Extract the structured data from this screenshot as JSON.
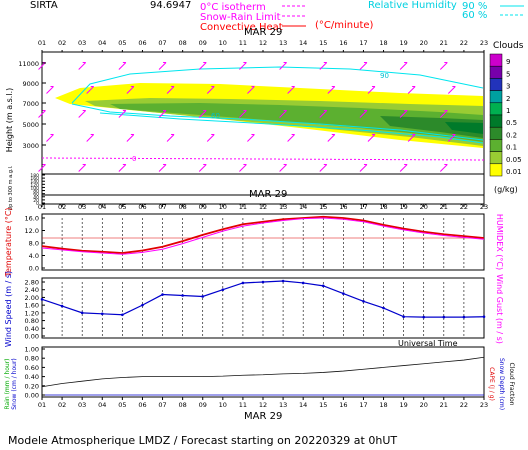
{
  "header": {
    "station": "SIRTA",
    "coords": "94.6947",
    "legend_isotherm": "0°C isotherm",
    "legend_snow": "Snow-Rain Limit",
    "legend_convective": "Convective Heat",
    "legend_convective_unit": "(°C/minute)",
    "legend_rh": "Relative Humidity",
    "rh_level_1": "90 %",
    "rh_level_2": "60 %"
  },
  "hours": [
    "01",
    "02",
    "03",
    "04",
    "05",
    "06",
    "07",
    "08",
    "09",
    "10",
    "11",
    "12",
    "13",
    "14",
    "15",
    "16",
    "17",
    "18",
    "19",
    "20",
    "21",
    "22",
    "23"
  ],
  "date_label": "MAR 29",
  "colors": {
    "isotherm": "#ff00ff",
    "rh": "#00e5ee",
    "temperature": "#e00000",
    "humidex": "#ff00ff",
    "wind": "#0000cc",
    "rain": "#111111"
  },
  "panel_cloud": {
    "ylabel": "Height (m a.s.l.)",
    "ylabel_low": "Up to 300 m a.g.l.",
    "high_ticks": [
      "11000",
      "9000",
      "7000",
      "5000",
      "3000"
    ],
    "low_ticks": [
      "180",
      "160",
      "140",
      "120",
      "100",
      "80",
      "60",
      "40",
      "20",
      "0"
    ],
    "legend_title": "Clouds",
    "legend_values": [
      "9",
      "5",
      "3",
      "2",
      "1",
      "0.5",
      "0.2",
      "0.1",
      "0.05",
      "0.01"
    ],
    "legend_colors": [
      "#cc00cc",
      "#7700aa",
      "#2233bb",
      "#00a0a0",
      "#00b050",
      "#007a2a",
      "#2c8a2a",
      "#5cb030",
      "#99cc33",
      "#ffff00"
    ],
    "legend_unit": "(g/kg)",
    "label_isotherm_value": "0",
    "label_rh_90": "90",
    "label_rh_60": "60"
  },
  "panel_temp": {
    "ylabel": "Temperature (°C)",
    "ylabel_right": "HUMIDEX (°C)",
    "ticks": [
      "16.0",
      "12.0",
      "8.0",
      "4.0",
      "0.0"
    ]
  },
  "panel_wind": {
    "ylabel": "Wind Speed (m / s)",
    "ylabel_right": "Wind Gust (m / s)",
    "ticks": [
      "2.80",
      "2.40",
      "2.00",
      "1.60",
      "1.20",
      "0.80",
      "0.40",
      "0.00"
    ]
  },
  "panel_rain": {
    "ylabel_rain": "Rain (mm / hour)",
    "ylabel_snow": "Snow (cm / hour)",
    "ylabel_cape": "CAPE (J / g)",
    "ylabel_snowdepth": "Snow Depth (cm)",
    "ylabel_cloudfrac": "Cloud Fraction",
    "ticks": [
      "1.00",
      "0.80",
      "0.60",
      "0.40",
      "0.20",
      "0.00"
    ]
  },
  "footer": {
    "universal_time": "Universal Time",
    "caption": "Modele Atmospherique LMDZ / Forecast starting on 20220329 at 0hUT"
  },
  "chart_data": [
    {
      "type": "line",
      "title": "Temperature / Humidex",
      "x": [
        "01",
        "02",
        "03",
        "04",
        "05",
        "06",
        "07",
        "08",
        "09",
        "10",
        "11",
        "12",
        "13",
        "14",
        "15",
        "16",
        "17",
        "18",
        "19",
        "20",
        "21",
        "22",
        "23"
      ],
      "ylim": [
        0,
        16
      ],
      "series": [
        {
          "name": "Temperature",
          "values": [
            7.0,
            6.2,
            5.5,
            5.2,
            4.8,
            5.6,
            6.8,
            8.6,
            10.6,
            12.4,
            14.0,
            14.8,
            15.6,
            16.0,
            16.4,
            16.0,
            15.2,
            13.8,
            12.6,
            11.6,
            10.8,
            10.2,
            9.6
          ]
        },
        {
          "name": "Humidex",
          "values": [
            6.4,
            5.8,
            5.2,
            4.8,
            4.4,
            5.0,
            6.0,
            7.8,
            9.8,
            11.8,
            13.4,
            14.4,
            15.2,
            15.8,
            16.0,
            15.6,
            14.8,
            13.4,
            12.2,
            11.2,
            10.4,
            9.8,
            9.2
          ]
        }
      ]
    },
    {
      "type": "line",
      "title": "Wind Speed",
      "x": [
        "01",
        "02",
        "03",
        "04",
        "05",
        "06",
        "07",
        "08",
        "09",
        "10",
        "11",
        "12",
        "13",
        "14",
        "15",
        "16",
        "17",
        "18",
        "19",
        "20",
        "21",
        "22",
        "23"
      ],
      "ylim": [
        0,
        2.8
      ],
      "series": [
        {
          "name": "Wind Speed",
          "values": [
            1.9,
            1.55,
            1.2,
            1.15,
            1.1,
            1.6,
            2.15,
            2.1,
            2.05,
            2.4,
            2.75,
            2.8,
            2.85,
            2.75,
            2.6,
            2.2,
            1.8,
            1.45,
            1.0,
            0.98,
            0.98,
            0.98,
            1.0
          ]
        }
      ]
    },
    {
      "type": "line",
      "title": "Rain / Snow Depth / Cloud Fraction",
      "x": [
        "01",
        "02",
        "03",
        "04",
        "05",
        "06",
        "07",
        "08",
        "09",
        "10",
        "11",
        "12",
        "13",
        "14",
        "15",
        "16",
        "17",
        "18",
        "19",
        "20",
        "21",
        "22",
        "23"
      ],
      "ylim": [
        0,
        1
      ],
      "series": [
        {
          "name": "Cloud Fraction",
          "values": [
            0.18,
            0.25,
            0.3,
            0.35,
            0.38,
            0.4,
            0.4,
            0.4,
            0.4,
            0.41,
            0.43,
            0.44,
            0.46,
            0.47,
            0.49,
            0.52,
            0.56,
            0.6,
            0.64,
            0.68,
            0.72,
            0.76,
            0.82
          ]
        },
        {
          "name": "Rain",
          "values": [
            0,
            0,
            0,
            0,
            0,
            0,
            0,
            0,
            0,
            0,
            0,
            0,
            0,
            0,
            0,
            0,
            0,
            0,
            0,
            0,
            0,
            0,
            0
          ]
        }
      ]
    }
  ]
}
